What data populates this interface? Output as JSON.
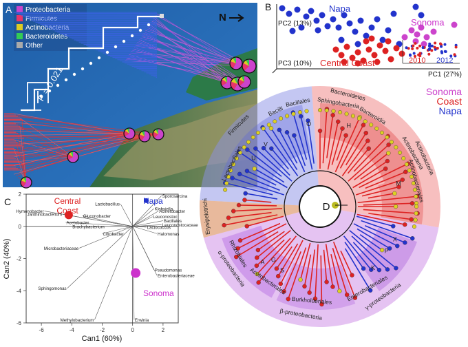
{
  "panel_a": {
    "letter": "A",
    "legend": [
      {
        "label": "Proteobacteria",
        "color": "#cc44cc"
      },
      {
        "label": "Firmicutes",
        "color": "#e8346a"
      },
      {
        "label": "Actinobacteria",
        "color": "#ddcc22"
      },
      {
        "label": "Bacteroidetes",
        "color": "#33cc55"
      },
      {
        "label": "Other",
        "color": "#aaaaaa"
      }
    ],
    "north_label": "N",
    "p_value": "P = 0.021"
  },
  "panel_b": {
    "letter": "B",
    "pc2_label": "PC2 (13%)",
    "pc3_label": "PC3 (10%)",
    "pc1_label": "PC1 (27%)",
    "napa_label": "Napa",
    "sonoma_label": "Sonoma",
    "central_coast_label": "Central Coast",
    "year_2010": "2010",
    "year_2012": "2012"
  },
  "panel_c": {
    "letter": "C",
    "region_central": "Central\nCoast",
    "region_napa": "Napa",
    "region_sonoma": "Sonoma",
    "xlabel": "Can1 (60%)",
    "ylabel": "Can2 (40%)",
    "x_ticks": [
      "-6",
      "-4",
      "-2",
      "0",
      "2"
    ],
    "y_ticks": [
      "2",
      "0",
      "-2",
      "-4",
      "-6"
    ],
    "taxa": [
      "Lactobacillus",
      "Sporosarcina",
      "Klebsiella",
      "Acinetobacter",
      "Leuconostoc",
      "Bacillales",
      "Leuconostocaceae",
      "Lactococcus",
      "Halomonas",
      "Hymenobacter",
      "Janthinobacterium",
      "Gluconobacter",
      "Acetobacter",
      "Brachybacterium",
      "Citrobacter",
      "Microbacteriaceae",
      "Pseudomonas",
      "Enterobacteriaceae",
      "Sphingomonas",
      "Methylobacterium",
      "Erwinia"
    ]
  },
  "panel_d": {
    "letter": "D",
    "legend_sonoma": "Sonoma",
    "legend_coast": "Coast",
    "legend_napa": "Napa",
    "clade_labels": [
      "Firmicutes",
      "Bacilli",
      "Bacillales",
      "Lactobacillales",
      "Bacteroidetes",
      "Sphingobacteria",
      "Bacteroidia",
      "Actinobacteria",
      "Actinobacteria",
      "Actinobacteriales",
      "Erysipelotrichi",
      "α-proteobacteria",
      "Rhizobiales",
      "Acetobacterales",
      "β-proteobacteria",
      "Burkholderiales",
      "γ-proteobacteria",
      "Enterobacteriales"
    ],
    "letter_labels": [
      "U",
      "V",
      "O",
      "H",
      "M",
      "P",
      "X",
      "K",
      "A",
      "G",
      "S"
    ]
  },
  "chart_data": [
    {
      "type": "scatter",
      "title": "",
      "xlabel": "PC1 (27%)",
      "ylabel": "PC2 (13%)",
      "series": [
        {
          "name": "Napa",
          "color": "#2233cc"
        },
        {
          "name": "Sonoma",
          "color": "#cc44cc"
        },
        {
          "name": "Central Coast",
          "color": "#dd2222"
        }
      ]
    },
    {
      "type": "scatter",
      "xlabel": "Can1 (60%)",
      "ylabel": "Can2 (40%)",
      "xlim": [
        -7,
        3
      ],
      "ylim": [
        -6,
        2
      ],
      "series": [
        {
          "name": "Central Coast",
          "x": [
            -4.2
          ],
          "y": [
            0.7
          ]
        },
        {
          "name": "Napa",
          "x": [
            0.9
          ],
          "y": [
            1.6
          ]
        },
        {
          "name": "Sonoma",
          "x": [
            0.2
          ],
          "y": [
            -2.9
          ]
        }
      ]
    }
  ]
}
